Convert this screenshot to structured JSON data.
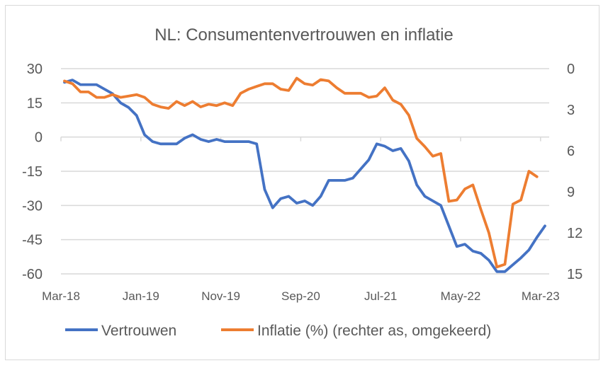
{
  "chart_data": {
    "type": "line",
    "title": "NL: Consumentenvertrouwen en inflatie",
    "x_tick_labels": [
      "Mar-18",
      "Jan-19",
      "Nov-19",
      "Sep-20",
      "Jul-21",
      "May-22",
      "Mar-23"
    ],
    "x_start": "Mar-18",
    "x_frequency": "monthly",
    "y_left": {
      "ticks": [
        30,
        15,
        0,
        -15,
        -30,
        -45,
        -60
      ],
      "ylim": [
        -60,
        30
      ]
    },
    "y_right": {
      "ticks": [
        0,
        3,
        6,
        9,
        12,
        15
      ],
      "ylim": [
        0,
        15
      ],
      "inverted": true
    },
    "grid": true,
    "legend_position": "bottom",
    "series": [
      {
        "name": "Vertrouwen",
        "axis": "left",
        "color": "#4472C4",
        "values": [
          24,
          25,
          23,
          23,
          23,
          21,
          19,
          15,
          13,
          9.5,
          1,
          -2,
          -3,
          -3,
          -3,
          -0.5,
          1,
          -1,
          -2,
          -1,
          -2,
          -2,
          -2,
          -2,
          -3,
          -23,
          -31,
          -27,
          -26,
          -29,
          -28,
          -30,
          -26,
          -19,
          -19,
          -19,
          -18,
          -14,
          -10,
          -3,
          -4,
          -6,
          -5,
          -10.5,
          -21,
          -26,
          -28,
          -30,
          -39,
          -48,
          -47,
          -50,
          -51,
          -54,
          -59,
          -59,
          -56,
          -53,
          -49.5,
          -44,
          -39
        ]
      },
      {
        "name": "Inflatie (%) (rechter as, omgekeerd)",
        "axis": "right",
        "color": "#ED7D31",
        "values": [
          0.9,
          1.1,
          1.7,
          1.7,
          2.1,
          2.1,
          1.9,
          2.1,
          2.0,
          1.9,
          2.1,
          2.6,
          2.8,
          2.9,
          2.4,
          2.7,
          2.4,
          2.8,
          2.6,
          2.7,
          2.5,
          2.7,
          1.8,
          1.5,
          1.3,
          1.1,
          1.1,
          1.5,
          1.6,
          0.7,
          1.1,
          1.2,
          0.8,
          0.9,
          1.4,
          1.8,
          1.8,
          1.8,
          2.1,
          2.0,
          1.4,
          2.3,
          2.6,
          3.4,
          5.1,
          5.7,
          6.4,
          6.2,
          9.7,
          9.6,
          8.8,
          8.5,
          10.3,
          12.0,
          14.5,
          14.3,
          9.9,
          9.6,
          7.5,
          7.9
        ]
      }
    ]
  }
}
